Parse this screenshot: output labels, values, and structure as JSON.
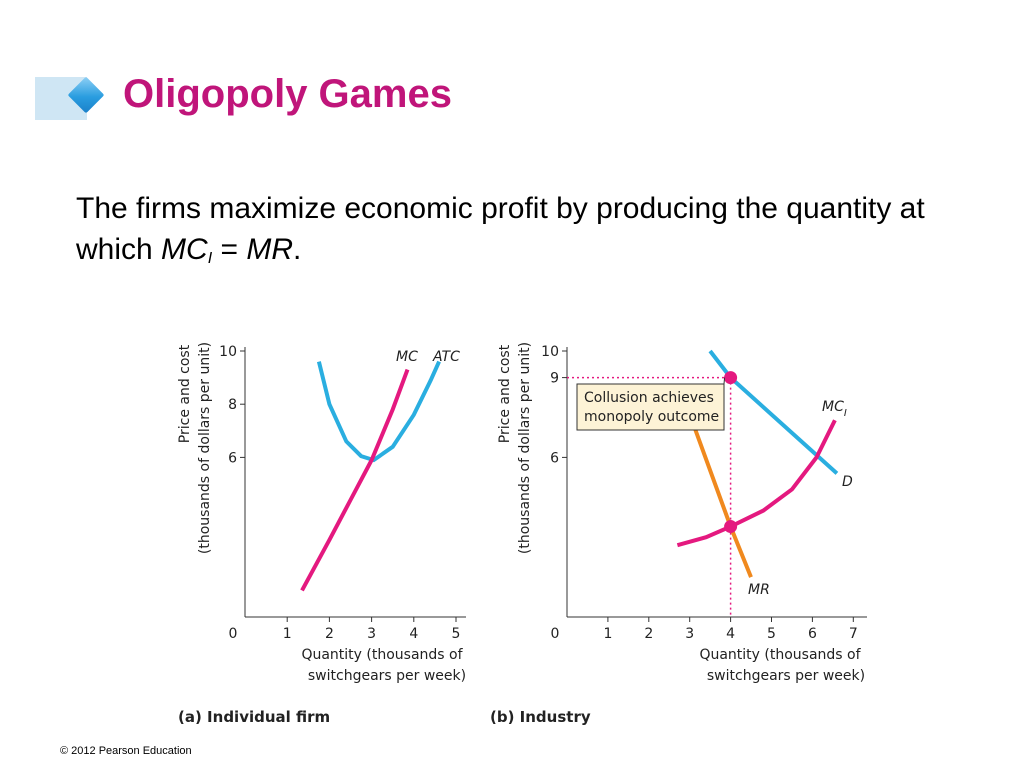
{
  "slide": {
    "title": "Oligopoly Games",
    "text_before": "The firms maximize economic profit by producing the quantity at which ",
    "mc_symbol": "MC",
    "mc_subscript": "I",
    "equals": " = ",
    "mr_symbol": "MR",
    "period": ".",
    "footer": "© 2012 Pearson Education"
  },
  "colors": {
    "title": "#c0157a",
    "mc": "#e4197f",
    "atc": "#2aaee0",
    "demand": "#2aaee0",
    "mr": "#f0891e",
    "highlight": "#e4197f",
    "callout_bg": "#fdf3d6"
  },
  "chart_data": [
    {
      "type": "line",
      "title": "(a) Individual firm",
      "ylabel_line1": "Price and cost",
      "ylabel_line2": "(thousands of dollars per unit)",
      "xlabel_line1": "Quantity (thousands of",
      "xlabel_line2": "switchgears per week)",
      "xlim": [
        0,
        5
      ],
      "ylim": [
        0,
        10
      ],
      "xticks": [
        "0",
        "1",
        "2",
        "3",
        "4",
        "5"
      ],
      "yticks": [
        "6",
        "8",
        "10"
      ],
      "series": [
        {
          "name": "MC",
          "color": "#e4197f",
          "points": [
            [
              1.35,
              1.0
            ],
            [
              2.0,
              2.9
            ],
            [
              2.5,
              4.4
            ],
            [
              3.0,
              5.9
            ],
            [
              3.5,
              7.8
            ],
            [
              3.85,
              9.3
            ]
          ]
        },
        {
          "name": "ATC",
          "color": "#2aaee0",
          "points": [
            [
              1.75,
              9.6
            ],
            [
              2.0,
              8.0
            ],
            [
              2.4,
              6.6
            ],
            [
              2.75,
              6.05
            ],
            [
              3.05,
              5.9
            ],
            [
              3.5,
              6.4
            ],
            [
              4.0,
              7.6
            ],
            [
              4.4,
              8.9
            ],
            [
              4.6,
              9.6
            ]
          ]
        }
      ]
    },
    {
      "type": "line",
      "title": "(b) Industry",
      "ylabel_line1": "Price and cost",
      "ylabel_line2": "(thousands of dollars per unit)",
      "xlabel_line1": "Quantity (thousands of",
      "xlabel_line2": "switchgears per week)",
      "xlim": [
        0,
        7
      ],
      "ylim": [
        0,
        10
      ],
      "xticks": [
        "0",
        "1",
        "2",
        "3",
        "4",
        "5",
        "6",
        "7"
      ],
      "yticks": [
        "6",
        "9",
        "10"
      ],
      "highlight_x": "4",
      "highlight_y": "9",
      "series": [
        {
          "name": "D",
          "color": "#2aaee0",
          "points": [
            [
              3.5,
              10.0
            ],
            [
              4.0,
              9.0
            ],
            [
              6.6,
              5.4
            ]
          ]
        },
        {
          "name": "MR",
          "color": "#f0891e",
          "points": [
            [
              3.1,
              7.2
            ],
            [
              4.0,
              3.4
            ],
            [
              4.5,
              1.5
            ]
          ]
        },
        {
          "name": "MC",
          "name_subscript": "I",
          "color": "#e4197f",
          "points": [
            [
              2.7,
              2.7
            ],
            [
              3.4,
              3.0
            ],
            [
              4.0,
              3.4
            ],
            [
              4.8,
              4.0
            ],
            [
              5.5,
              4.8
            ],
            [
              6.1,
              6.0
            ],
            [
              6.55,
              7.4
            ]
          ]
        }
      ],
      "points": [
        {
          "x": 4,
          "y": 9
        },
        {
          "x": 4,
          "y": 3.4
        }
      ],
      "callout_line1": "Collusion achieves",
      "callout_line2": "monopoly outcome"
    }
  ]
}
